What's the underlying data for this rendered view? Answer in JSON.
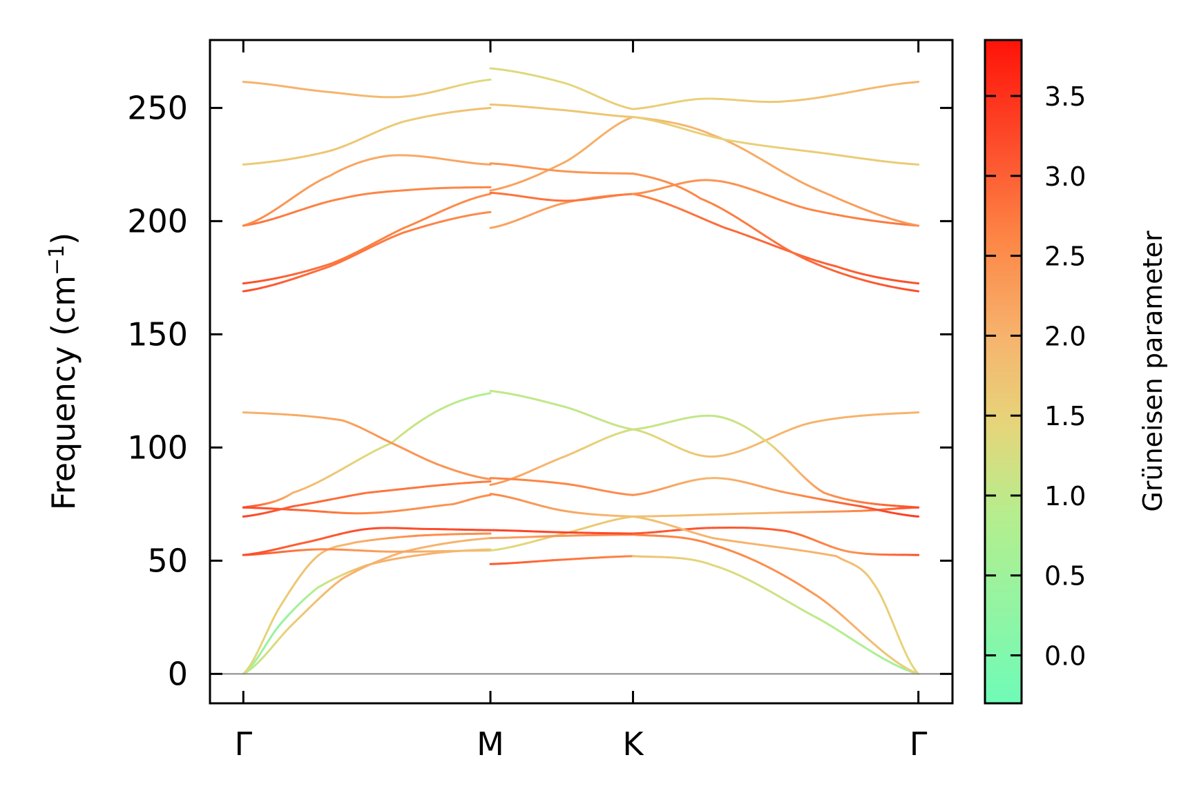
{
  "chart_data": {
    "type": "line",
    "title": "",
    "ylabel": "Frequency (cm",
    "ylabel_sup": "−1",
    "ylabel_close": ")",
    "ylim": [
      -13,
      280
    ],
    "yticks": [
      0,
      50,
      100,
      150,
      200,
      250
    ],
    "xticks": [
      {
        "label": "Γ",
        "x": 0
      },
      {
        "label": "M",
        "x": 1
      },
      {
        "label": "K",
        "x": 1.577
      },
      {
        "label": "Γ",
        "x": 2.732
      }
    ],
    "xlim": [
      -0.135,
      2.87
    ],
    "grid": false,
    "zero_line": true,
    "colorbar": {
      "label": "Grüneisen parameter",
      "range": [
        -0.3,
        3.85
      ],
      "ticks": [
        "0.0",
        "0.5",
        "1.0",
        "1.5",
        "2.0",
        "2.5",
        "3.0",
        "3.5"
      ],
      "tick_values": [
        0.0,
        0.5,
        1.0,
        1.5,
        2.0,
        2.5,
        3.0,
        3.5
      ],
      "colormap": [
        {
          "t": 0.0,
          "color": "#6ffbb7"
        },
        {
          "t": 0.28,
          "color": "#b4ee8e"
        },
        {
          "t": 0.42,
          "color": "#e6d57a"
        },
        {
          "t": 0.55,
          "color": "#f6b46e"
        },
        {
          "t": 0.7,
          "color": "#fd8646"
        },
        {
          "t": 0.85,
          "color": "#fd4a2a"
        },
        {
          "t": 1.0,
          "color": "#fe1308"
        }
      ]
    },
    "series": [
      {
        "segment": "Γ-M",
        "points": [
          [
            0,
            0,
            0.6
          ],
          [
            0.15,
            22,
            0.3
          ],
          [
            0.3,
            38,
            0.9
          ],
          [
            0.5,
            48,
            2.0
          ],
          [
            0.75,
            53,
            2.0
          ],
          [
            1,
            55,
            1.6
          ]
        ]
      },
      {
        "segment": "Γ-M",
        "points": [
          [
            0,
            0,
            0.8
          ],
          [
            0.2,
            22,
            1.6
          ],
          [
            0.4,
            42,
            2.0
          ],
          [
            0.65,
            54,
            2.0
          ],
          [
            1,
            60,
            2.0
          ]
        ]
      },
      {
        "segment": "Γ-M",
        "points": [
          [
            0,
            0,
            1.3
          ],
          [
            0.15,
            30,
            1.6
          ],
          [
            0.3,
            52,
            1.8
          ],
          [
            0.45,
            58,
            2.0
          ],
          [
            0.7,
            61,
            2.5
          ],
          [
            1,
            62,
            2.5
          ]
        ]
      },
      {
        "segment": "Γ-M",
        "points": [
          [
            0,
            52.5,
            3.2
          ],
          [
            0.3,
            55,
            2.6
          ],
          [
            0.6,
            54,
            2.2
          ],
          [
            1,
            54.5,
            1.8
          ]
        ]
      },
      {
        "segment": "Γ-M",
        "points": [
          [
            0,
            52.5,
            3.2
          ],
          [
            0.25,
            58,
            3.0
          ],
          [
            0.5,
            64,
            3.2
          ],
          [
            0.75,
            64,
            3.2
          ],
          [
            1,
            63.5,
            3.3
          ]
        ]
      },
      {
        "segment": "Γ-M",
        "points": [
          [
            0,
            69.5,
            3.3
          ],
          [
            0.2,
            74,
            3.0
          ],
          [
            0.5,
            80,
            2.8
          ],
          [
            1,
            85,
            2.7
          ]
        ]
      },
      {
        "segment": "Γ-M",
        "points": [
          [
            0,
            73.5,
            3.3
          ],
          [
            0.2,
            72.5,
            3.0
          ],
          [
            0.5,
            71,
            2.6
          ],
          [
            0.85,
            75,
            2.4
          ],
          [
            1,
            79,
            2.5
          ]
        ]
      },
      {
        "segment": "Γ-M",
        "points": [
          [
            0,
            73.5,
            3.3
          ],
          [
            0.2,
            80,
            2.0
          ],
          [
            0.6,
            102,
            1.2
          ],
          [
            0.8,
            117,
            1.0
          ],
          [
            1,
            124,
            0.8
          ]
        ]
      },
      {
        "segment": "Γ-M",
        "points": [
          [
            0,
            115.5,
            2.0
          ],
          [
            0.4,
            112,
            2.2
          ],
          [
            0.6,
            102,
            2.4
          ],
          [
            0.8,
            92,
            2.4
          ],
          [
            1,
            86,
            2.4
          ]
        ]
      },
      {
        "segment": "Γ-M",
        "points": [
          [
            0,
            169,
            3.2
          ],
          [
            0.35,
            180,
            2.8
          ],
          [
            0.65,
            195,
            2.7
          ],
          [
            1,
            204,
            2.5
          ]
        ]
      },
      {
        "segment": "Γ-M",
        "points": [
          [
            0,
            172.5,
            3.2
          ],
          [
            0.35,
            181,
            2.8
          ],
          [
            0.65,
            197,
            2.6
          ],
          [
            1,
            212,
            2.5
          ]
        ]
      },
      {
        "segment": "Γ-M",
        "points": [
          [
            0,
            198,
            2.8
          ],
          [
            0.4,
            210,
            2.6
          ],
          [
            0.7,
            214,
            2.6
          ],
          [
            1,
            215,
            2.6
          ]
        ]
      },
      {
        "segment": "Γ-M",
        "points": [
          [
            0,
            198,
            2.6
          ],
          [
            0.35,
            220,
            2.2
          ],
          [
            0.6,
            229,
            2.1
          ],
          [
            1,
            225,
            2.2
          ]
        ]
      },
      {
        "segment": "Γ-M",
        "points": [
          [
            0,
            225,
            1.6
          ],
          [
            0.35,
            231,
            1.7
          ],
          [
            0.65,
            244,
            1.6
          ],
          [
            1,
            250,
            1.8
          ]
        ]
      },
      {
        "segment": "Γ-M",
        "points": [
          [
            0,
            261.5,
            2.0
          ],
          [
            0.35,
            257,
            2.0
          ],
          [
            0.65,
            255,
            1.8
          ],
          [
            1,
            262.5,
            1.3
          ]
        ]
      },
      {
        "segment": "M-K",
        "points": [
          [
            1,
            48.5,
            3.1
          ],
          [
            1.3,
            50.5,
            2.8
          ],
          [
            1.577,
            52,
            2.6
          ]
        ]
      },
      {
        "segment": "M-K",
        "points": [
          [
            1,
            54.5,
            1.3
          ],
          [
            1.3,
            62,
            1.6
          ],
          [
            1.577,
            69.5,
            1.7
          ]
        ]
      },
      {
        "segment": "M-K",
        "points": [
          [
            1,
            60,
            2.2
          ],
          [
            1.3,
            61,
            2.4
          ],
          [
            1.577,
            61.5,
            2.6
          ]
        ]
      },
      {
        "segment": "M-K",
        "points": [
          [
            1,
            63.5,
            3.3
          ],
          [
            1.3,
            62.5,
            3.3
          ],
          [
            1.577,
            62,
            3.2
          ]
        ]
      },
      {
        "segment": "M-K",
        "points": [
          [
            1,
            79.5,
            2.6
          ],
          [
            1.3,
            72,
            2.2
          ],
          [
            1.577,
            69.5,
            1.8
          ]
        ]
      },
      {
        "segment": "M-K",
        "points": [
          [
            1,
            83.5,
            2.4
          ],
          [
            1.3,
            96,
            1.8
          ],
          [
            1.577,
            108,
            1.2
          ]
        ]
      },
      {
        "segment": "M-K",
        "points": [
          [
            1,
            86.5,
            2.6
          ],
          [
            1.3,
            84,
            2.6
          ],
          [
            1.577,
            79,
            2.5
          ]
        ]
      },
      {
        "segment": "M-K",
        "points": [
          [
            1,
            125,
            1.0
          ],
          [
            1.3,
            118,
            1.0
          ],
          [
            1.577,
            108,
            1.1
          ]
        ]
      },
      {
        "segment": "M-K",
        "points": [
          [
            1,
            197,
            2.2
          ],
          [
            1.3,
            208,
            2.3
          ],
          [
            1.577,
            212,
            2.4
          ]
        ]
      },
      {
        "segment": "M-K",
        "points": [
          [
            1,
            212.5,
            2.8
          ],
          [
            1.3,
            209,
            2.8
          ],
          [
            1.577,
            212,
            2.7
          ]
        ]
      },
      {
        "segment": "M-K",
        "points": [
          [
            1,
            213.5,
            2.3
          ],
          [
            1.3,
            226,
            2.1
          ],
          [
            1.577,
            246,
            2.0
          ]
        ]
      },
      {
        "segment": "M-K",
        "points": [
          [
            1,
            225.5,
            2.4
          ],
          [
            1.3,
            222,
            2.4
          ],
          [
            1.577,
            221,
            2.4
          ]
        ]
      },
      {
        "segment": "M-K",
        "points": [
          [
            1,
            251.5,
            1.7
          ],
          [
            1.3,
            249,
            1.7
          ],
          [
            1.577,
            246,
            1.7
          ]
        ]
      },
      {
        "segment": "M-K",
        "points": [
          [
            1,
            267.5,
            1.3
          ],
          [
            1.3,
            261,
            1.4
          ],
          [
            1.577,
            249.5,
            1.6
          ]
        ]
      },
      {
        "segment": "K-Γ",
        "points": [
          [
            1.577,
            52,
            1.8
          ],
          [
            1.9,
            48,
            1.4
          ],
          [
            2.3,
            26,
            1.0
          ],
          [
            2.732,
            0,
            0.5
          ]
        ]
      },
      {
        "segment": "K-Γ",
        "points": [
          [
            1.577,
            61.5,
            2.6
          ],
          [
            1.9,
            57,
            2.6
          ],
          [
            2.3,
            36,
            2.4
          ],
          [
            2.732,
            0,
            1.4
          ]
        ]
      },
      {
        "segment": "K-Γ",
        "points": [
          [
            1.577,
            62,
            3.1
          ],
          [
            1.9,
            64.5,
            3.1
          ],
          [
            2.2,
            63,
            3.0
          ],
          [
            2.45,
            54,
            2.4
          ],
          [
            2.732,
            52.5,
            3.2
          ]
        ]
      },
      {
        "segment": "K-Γ",
        "points": [
          [
            1.577,
            69.5,
            1.7
          ],
          [
            1.9,
            60,
            2.0
          ],
          [
            2.4,
            52,
            2.0
          ],
          [
            2.55,
            40,
            1.6
          ],
          [
            2.732,
            0,
            1.4
          ]
        ]
      },
      {
        "segment": "K-Γ",
        "points": [
          [
            1.577,
            69.5,
            1.8
          ],
          [
            2.1,
            71,
            1.9
          ],
          [
            2.5,
            72,
            2.6
          ],
          [
            2.732,
            73.5,
            3.2
          ]
        ]
      },
      {
        "segment": "K-Γ",
        "points": [
          [
            1.577,
            79,
            2.5
          ],
          [
            1.9,
            86.5,
            1.9
          ],
          [
            2.2,
            80,
            2.4
          ],
          [
            2.5,
            74,
            3.1
          ],
          [
            2.732,
            69.5,
            3.4
          ]
        ]
      },
      {
        "segment": "K-Γ",
        "points": [
          [
            1.577,
            108,
            1.2
          ],
          [
            1.9,
            96,
            1.8
          ],
          [
            2.3,
            111,
            2.0
          ],
          [
            2.732,
            115.5,
            2.0
          ]
        ]
      },
      {
        "segment": "K-Γ",
        "points": [
          [
            1.577,
            108,
            1.1
          ],
          [
            1.9,
            114,
            1.0
          ],
          [
            2.1,
            104,
            1.3
          ],
          [
            2.35,
            80,
            2.4
          ],
          [
            2.732,
            73.5,
            3.2
          ]
        ]
      },
      {
        "segment": "K-Γ",
        "points": [
          [
            1.577,
            212,
            2.6
          ],
          [
            1.95,
            197,
            2.9
          ],
          [
            2.4,
            180,
            3.0
          ],
          [
            2.732,
            172.5,
            3.2
          ]
        ]
      },
      {
        "segment": "K-Γ",
        "points": [
          [
            1.577,
            212,
            2.5
          ],
          [
            1.9,
            218,
            2.4
          ],
          [
            2.3,
            205,
            2.6
          ],
          [
            2.732,
            198,
            2.8
          ]
        ]
      },
      {
        "segment": "K-Γ",
        "points": [
          [
            1.577,
            221,
            2.4
          ],
          [
            1.85,
            210,
            2.6
          ],
          [
            2.3,
            182,
            2.9
          ],
          [
            2.732,
            169,
            3.2
          ]
        ]
      },
      {
        "segment": "K-Γ",
        "points": [
          [
            1.577,
            246,
            1.8
          ],
          [
            1.9,
            238,
            2.0
          ],
          [
            2.3,
            215,
            2.2
          ],
          [
            2.732,
            198,
            2.4
          ]
        ]
      },
      {
        "segment": "K-Γ",
        "points": [
          [
            1.577,
            246,
            1.6
          ],
          [
            1.95,
            236,
            1.5
          ],
          [
            2.35,
            230,
            1.6
          ],
          [
            2.732,
            225,
            1.6
          ]
        ]
      },
      {
        "segment": "K-Γ",
        "points": [
          [
            1.577,
            249.5,
            1.6
          ],
          [
            1.85,
            254,
            1.5
          ],
          [
            2.2,
            253,
            1.7
          ],
          [
            2.732,
            261.5,
            2.0
          ]
        ]
      }
    ]
  }
}
